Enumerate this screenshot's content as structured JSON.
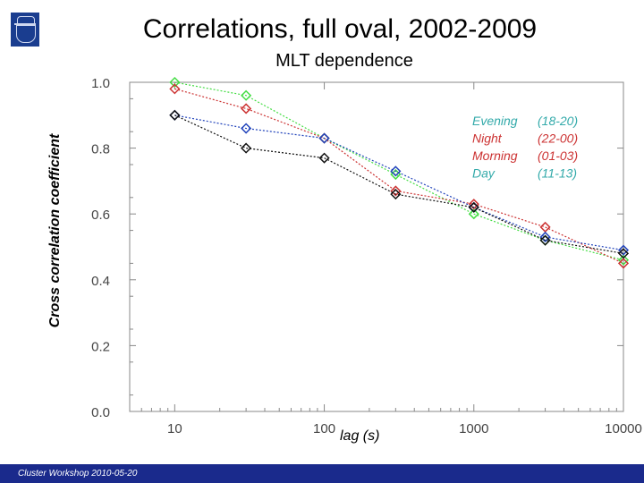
{
  "header": {
    "title": "Correlations, full oval, 2002-2009",
    "subtitle": "MLT dependence",
    "logo_icon": "kth-crest-icon"
  },
  "footer": {
    "text": "Cluster Workshop 2010-05-20"
  },
  "chart_data": {
    "type": "line",
    "title": "Correlations, full oval, 2002-2009",
    "subtitle": "MLT dependence",
    "xlabel": "lag (s)",
    "ylabel": "Cross correlation coefficient",
    "xscale": "log",
    "xlim": [
      5,
      10000
    ],
    "ylim": [
      0.0,
      1.0
    ],
    "xticks": [
      "10",
      "100",
      "1000",
      "10000"
    ],
    "yticks": [
      "0.0",
      "0.2",
      "0.4",
      "0.6",
      "0.8",
      "1.0"
    ],
    "grid": false,
    "legend_position": "top-right",
    "x": [
      10,
      30,
      100,
      300,
      1000,
      3000,
      10000
    ],
    "series": [
      {
        "name": "Evening",
        "range": "(18-20)",
        "color": "#44dd44",
        "marker": "diamond",
        "values": [
          1.0,
          0.96,
          0.83,
          0.72,
          0.6,
          0.52,
          0.46
        ]
      },
      {
        "name": "Night",
        "range": "(22-00)",
        "color": "#cc3333",
        "marker": "diamond",
        "values": [
          0.98,
          0.92,
          0.83,
          0.67,
          0.63,
          0.56,
          0.45
        ]
      },
      {
        "name": "Morning",
        "range": "(01-03)",
        "color": "#2244bb",
        "marker": "diamond",
        "values": [
          0.9,
          0.86,
          0.83,
          0.73,
          0.62,
          0.53,
          0.49
        ]
      },
      {
        "name": "Day",
        "range": "(11-13)",
        "color": "#111111",
        "marker": "diamond",
        "values": [
          0.9,
          0.8,
          0.77,
          0.66,
          0.62,
          0.52,
          0.48
        ]
      }
    ],
    "legend_text_colors": [
      "#33aaaa",
      "#cc3333",
      "#cc3333",
      "#33aaaa"
    ]
  }
}
